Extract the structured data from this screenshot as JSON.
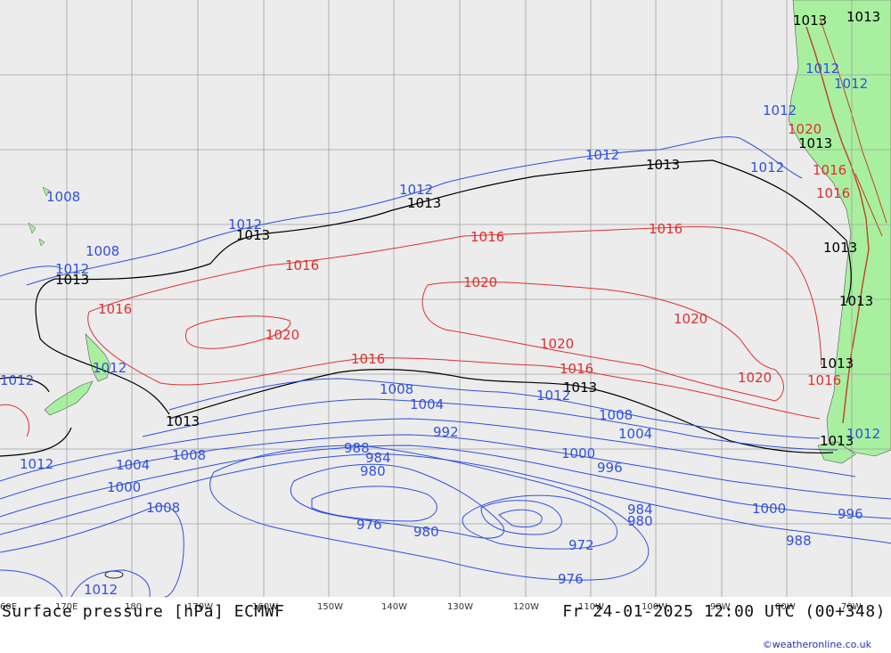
{
  "title": "Surface pressure [hPa] ECMWF",
  "valid_time": "Fr 24-01-2025 12:00 UTC (00+348)",
  "credit": "©weatheronline.co.uk",
  "colors": {
    "ocean": "#ececec",
    "land": "#a8f0a0",
    "grid": "#a0a0a0",
    "low_isobar": "#3050e0",
    "high_isobar": "#e03030",
    "mean_isobar": "#000000",
    "terrain": "#c04020"
  },
  "longitude_ticks": [
    "60E",
    "170E",
    "180",
    "170W",
    "160W",
    "150W",
    "140W",
    "130W",
    "120W",
    "110W",
    "100W",
    "90W",
    "80W",
    "70W"
  ],
  "isobar_labels": [
    {
      "text": "1013",
      "kind": "mean"
    },
    {
      "text": "1013",
      "kind": "mean"
    },
    {
      "text": "1013",
      "kind": "mean"
    },
    {
      "text": "1013",
      "kind": "mean"
    },
    {
      "text": "1013",
      "kind": "mean"
    },
    {
      "text": "1013",
      "kind": "mean"
    },
    {
      "text": "1013",
      "kind": "mean"
    },
    {
      "text": "1013",
      "kind": "mean"
    },
    {
      "text": "1013",
      "kind": "mean"
    },
    {
      "text": "1013",
      "kind": "mean"
    },
    {
      "text": "1013",
      "kind": "mean"
    },
    {
      "text": "1013",
      "kind": "mean"
    },
    {
      "text": "1013",
      "kind": "mean"
    },
    {
      "text": "1012",
      "kind": "low"
    },
    {
      "text": "1012",
      "kind": "low"
    },
    {
      "text": "1012",
      "kind": "low"
    },
    {
      "text": "1012",
      "kind": "low"
    },
    {
      "text": "1012",
      "kind": "low"
    },
    {
      "text": "1012",
      "kind": "low"
    },
    {
      "text": "1012",
      "kind": "low"
    },
    {
      "text": "1012",
      "kind": "low"
    },
    {
      "text": "1012",
      "kind": "low"
    },
    {
      "text": "1012",
      "kind": "low"
    },
    {
      "text": "1012",
      "kind": "low"
    },
    {
      "text": "1012",
      "kind": "low"
    },
    {
      "text": "1012",
      "kind": "low"
    },
    {
      "text": "1012",
      "kind": "low"
    },
    {
      "text": "1008",
      "kind": "low"
    },
    {
      "text": "1008",
      "kind": "low"
    },
    {
      "text": "1008",
      "kind": "low"
    },
    {
      "text": "1008",
      "kind": "low"
    },
    {
      "text": "1008",
      "kind": "low"
    },
    {
      "text": "1008",
      "kind": "low"
    },
    {
      "text": "1004",
      "kind": "low"
    },
    {
      "text": "1004",
      "kind": "low"
    },
    {
      "text": "1004",
      "kind": "low"
    },
    {
      "text": "1000",
      "kind": "low"
    },
    {
      "text": "1000",
      "kind": "low"
    },
    {
      "text": "1000",
      "kind": "low"
    },
    {
      "text": "996",
      "kind": "low"
    },
    {
      "text": "996",
      "kind": "low"
    },
    {
      "text": "992",
      "kind": "low"
    },
    {
      "text": "988",
      "kind": "low"
    },
    {
      "text": "988",
      "kind": "low"
    },
    {
      "text": "984",
      "kind": "low"
    },
    {
      "text": "984",
      "kind": "low"
    },
    {
      "text": "980",
      "kind": "low"
    },
    {
      "text": "980",
      "kind": "low"
    },
    {
      "text": "980",
      "kind": "low"
    },
    {
      "text": "976",
      "kind": "low"
    },
    {
      "text": "976",
      "kind": "low"
    },
    {
      "text": "972",
      "kind": "low"
    },
    {
      "text": "1016",
      "kind": "high"
    },
    {
      "text": "1016",
      "kind": "high"
    },
    {
      "text": "1016",
      "kind": "high"
    },
    {
      "text": "1016",
      "kind": "high"
    },
    {
      "text": "1016",
      "kind": "high"
    },
    {
      "text": "1016",
      "kind": "high"
    },
    {
      "text": "1016",
      "kind": "high"
    },
    {
      "text": "1016",
      "kind": "high"
    },
    {
      "text": "1016",
      "kind": "high"
    },
    {
      "text": "1020",
      "kind": "high"
    },
    {
      "text": "1020",
      "kind": "high"
    },
    {
      "text": "1020",
      "kind": "high"
    },
    {
      "text": "1020",
      "kind": "high"
    },
    {
      "text": "1020",
      "kind": "high"
    },
    {
      "text": "1020",
      "kind": "high"
    }
  ]
}
